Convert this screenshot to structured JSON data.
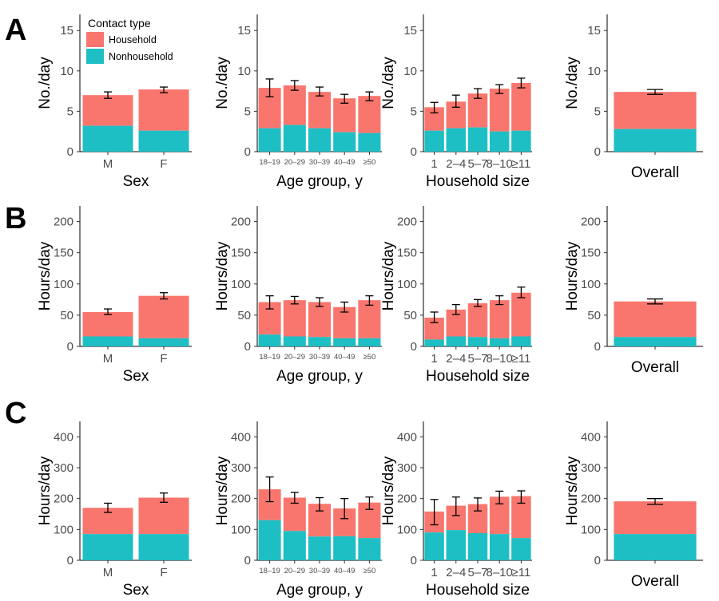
{
  "colors": {
    "household": "#F8766D",
    "nonhousehold": "#1DBFC4"
  },
  "legend": {
    "title": "Contact type",
    "items": [
      "Household",
      "Nonhousehold"
    ]
  },
  "panel_letters": [
    "A",
    "B",
    "C"
  ],
  "chart_data": [
    {
      "type": "bar",
      "panel": "A",
      "xlabel": "Sex",
      "ylabel": "No./day",
      "ylim": [
        0,
        17
      ],
      "yticks": [
        0,
        5,
        10,
        15
      ],
      "categories": [
        "M",
        "F"
      ],
      "series": [
        {
          "name": "Nonhousehold",
          "values": [
            3.2,
            2.6
          ]
        },
        {
          "name": "Household",
          "values": [
            3.8,
            5.1
          ]
        }
      ],
      "total_ci": [
        [
          6.6,
          7.4
        ],
        [
          7.3,
          8.0
        ]
      ]
    },
    {
      "type": "bar",
      "panel": "A",
      "xlabel": "Age group, y",
      "ylabel": "No./day",
      "ylim": [
        0,
        17
      ],
      "yticks": [
        0,
        5,
        10,
        15
      ],
      "categories": [
        "18–19",
        "20–29",
        "30–39",
        "40–49",
        "≥50"
      ],
      "series": [
        {
          "name": "Nonhousehold",
          "values": [
            2.9,
            3.3,
            2.9,
            2.4,
            2.3
          ]
        },
        {
          "name": "Household",
          "values": [
            5.0,
            4.9,
            4.5,
            4.2,
            4.6
          ]
        }
      ],
      "total_ci": [
        [
          6.8,
          9.0
        ],
        [
          7.6,
          8.8
        ],
        [
          6.9,
          8.0
        ],
        [
          6.0,
          7.1
        ],
        [
          6.3,
          7.4
        ]
      ]
    },
    {
      "type": "bar",
      "panel": "A",
      "xlabel": "Household size",
      "ylabel": "No./day",
      "ylim": [
        0,
        17
      ],
      "yticks": [
        0,
        5,
        10,
        15
      ],
      "categories": [
        "1",
        "2–4",
        "5–7",
        "8–10",
        "≥11"
      ],
      "series": [
        {
          "name": "Nonhousehold",
          "values": [
            2.6,
            2.9,
            3.0,
            2.5,
            2.6
          ]
        },
        {
          "name": "Household",
          "values": [
            2.9,
            3.3,
            4.2,
            5.3,
            5.9
          ]
        }
      ],
      "total_ci": [
        [
          4.8,
          6.1
        ],
        [
          5.5,
          7.0
        ],
        [
          6.6,
          7.8
        ],
        [
          7.2,
          8.3
        ],
        [
          7.9,
          9.1
        ]
      ]
    },
    {
      "type": "bar",
      "panel": "A",
      "xlabel": "Overall",
      "ylabel": "No./day",
      "ylim": [
        0,
        17
      ],
      "yticks": [
        0,
        5,
        10,
        15
      ],
      "categories": [
        ""
      ],
      "series": [
        {
          "name": "Nonhousehold",
          "values": [
            2.8
          ]
        },
        {
          "name": "Household",
          "values": [
            4.6
          ]
        }
      ],
      "total_ci": [
        [
          7.1,
          7.7
        ]
      ]
    },
    {
      "type": "bar",
      "panel": "B",
      "xlabel": "Sex",
      "ylabel": "Hours/day",
      "ylim": [
        0,
        225
      ],
      "yticks": [
        0,
        50,
        100,
        150,
        200
      ],
      "categories": [
        "M",
        "F"
      ],
      "series": [
        {
          "name": "Nonhousehold",
          "values": [
            16,
            13
          ]
        },
        {
          "name": "Household",
          "values": [
            39,
            68
          ]
        }
      ],
      "total_ci": [
        [
          51,
          60
        ],
        [
          76,
          86
        ]
      ]
    },
    {
      "type": "bar",
      "panel": "B",
      "xlabel": "Age group, y",
      "ylabel": "Hours/day",
      "ylim": [
        0,
        225
      ],
      "yticks": [
        0,
        50,
        100,
        150,
        200
      ],
      "categories": [
        "18–19",
        "20–29",
        "30–39",
        "40–49",
        "≥50"
      ],
      "series": [
        {
          "name": "Nonhousehold",
          "values": [
            19,
            16,
            15,
            13,
            13
          ]
        },
        {
          "name": "Household",
          "values": [
            52,
            58,
            56,
            50,
            61
          ]
        }
      ],
      "total_ci": [
        [
          60,
          81
        ],
        [
          68,
          80
        ],
        [
          64,
          78
        ],
        [
          55,
          71
        ],
        [
          66,
          81
        ]
      ]
    },
    {
      "type": "bar",
      "panel": "B",
      "xlabel": "Household size",
      "ylabel": "Hours/day",
      "ylim": [
        0,
        225
      ],
      "yticks": [
        0,
        50,
        100,
        150,
        200
      ],
      "categories": [
        "1",
        "2–4",
        "5–7",
        "8–10",
        "≥11"
      ],
      "series": [
        {
          "name": "Nonhousehold",
          "values": [
            11,
            16,
            15,
            13,
            16
          ]
        },
        {
          "name": "Household",
          "values": [
            35,
            43,
            54,
            61,
            70
          ]
        }
      ],
      "total_ci": [
        [
          38,
          55
        ],
        [
          51,
          67
        ],
        [
          64,
          75
        ],
        [
          67,
          81
        ],
        [
          78,
          95
        ]
      ]
    },
    {
      "type": "bar",
      "panel": "B",
      "xlabel": "Overall",
      "ylabel": "Hours/day",
      "ylim": [
        0,
        225
      ],
      "yticks": [
        0,
        50,
        100,
        150,
        200
      ],
      "categories": [
        ""
      ],
      "series": [
        {
          "name": "Nonhousehold",
          "values": [
            15
          ]
        },
        {
          "name": "Household",
          "values": [
            57
          ]
        }
      ],
      "total_ci": [
        [
          68,
          76
        ]
      ]
    },
    {
      "type": "bar",
      "panel": "C",
      "xlabel": "Sex",
      "ylabel": "Hours/day",
      "ylim": [
        0,
        450
      ],
      "yticks": [
        0,
        100,
        200,
        300,
        400
      ],
      "categories": [
        "M",
        "F"
      ],
      "series": [
        {
          "name": "Nonhousehold",
          "values": [
            85,
            85
          ]
        },
        {
          "name": "Household",
          "values": [
            85,
            118
          ]
        }
      ],
      "total_ci": [
        [
          155,
          185
        ],
        [
          188,
          218
        ]
      ]
    },
    {
      "type": "bar",
      "panel": "C",
      "xlabel": "Age group, y",
      "ylabel": "Hours/day",
      "ylim": [
        0,
        450
      ],
      "yticks": [
        0,
        100,
        200,
        300,
        400
      ],
      "categories": [
        "18–19",
        "20–29",
        "30–39",
        "40–49",
        "≥50"
      ],
      "series": [
        {
          "name": "Nonhousehold",
          "values": [
            130,
            95,
            77,
            78,
            72
          ]
        },
        {
          "name": "Household",
          "values": [
            100,
            108,
            106,
            90,
            115
          ]
        }
      ],
      "total_ci": [
        [
          190,
          270
        ],
        [
          185,
          220
        ],
        [
          160,
          203
        ],
        [
          135,
          200
        ],
        [
          165,
          205
        ]
      ]
    },
    {
      "type": "bar",
      "panel": "C",
      "xlabel": "Household size",
      "ylabel": "Hours/day",
      "ylim": [
        0,
        450
      ],
      "yticks": [
        0,
        100,
        200,
        300,
        400
      ],
      "categories": [
        "1",
        "2–4",
        "5–7",
        "8–10",
        "≥11"
      ],
      "series": [
        {
          "name": "Nonhousehold",
          "values": [
            90,
            98,
            88,
            85,
            72
          ]
        },
        {
          "name": "Household",
          "values": [
            68,
            79,
            94,
            121,
            136
          ]
        }
      ],
      "total_ci": [
        [
          115,
          197
        ],
        [
          145,
          205
        ],
        [
          160,
          202
        ],
        [
          183,
          224
        ],
        [
          185,
          225
        ]
      ]
    },
    {
      "type": "bar",
      "panel": "C",
      "xlabel": "Overall",
      "ylabel": "Hours/day",
      "ylim": [
        0,
        450
      ],
      "yticks": [
        0,
        100,
        200,
        300,
        400
      ],
      "categories": [
        ""
      ],
      "series": [
        {
          "name": "Nonhousehold",
          "values": [
            85
          ]
        },
        {
          "name": "Household",
          "values": [
            106
          ]
        }
      ],
      "total_ci": [
        [
          181,
          200
        ]
      ]
    }
  ]
}
